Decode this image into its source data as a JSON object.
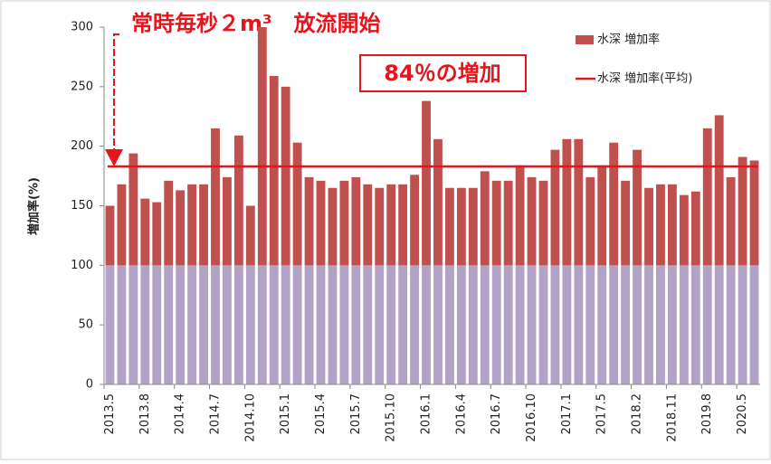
{
  "chart_data": {
    "type": "bar",
    "title": "常時毎秒２m³　放流開始",
    "annotation": "84％の増加",
    "ylabel": "増加率(%)",
    "categories": [
      "2013.5",
      null,
      null,
      "2013.8",
      null,
      null,
      "2014.4",
      null,
      null,
      "2014.7",
      null,
      null,
      "2014.10",
      null,
      null,
      "2015.1",
      null,
      null,
      "2015.4",
      null,
      null,
      "2015.7",
      null,
      null,
      "2015.10",
      null,
      null,
      "2016.1",
      null,
      null,
      "2016.4",
      null,
      null,
      "2016.7",
      null,
      null,
      "2016.10",
      null,
      null,
      "2017.1",
      null,
      null,
      "2017.5",
      null,
      null,
      "2018.2",
      null,
      null,
      "2018.11",
      null,
      null,
      "2019.8",
      null,
      null,
      "2020.5",
      null
    ],
    "series": [
      {
        "name": "水深 増加率",
        "color": "#c0504d",
        "base_color": "#b3a2c7",
        "base_value": 100,
        "values": [
          150,
          168,
          194,
          156,
          153,
          171,
          163,
          168,
          168,
          215,
          174,
          209,
          150,
          300,
          259,
          250,
          203,
          174,
          171,
          165,
          171,
          174,
          168,
          165,
          168,
          168,
          176,
          238,
          206,
          165,
          165,
          165,
          179,
          171,
          171,
          184,
          174,
          171,
          197,
          206,
          206,
          174,
          184,
          203,
          171,
          197,
          165,
          168,
          168,
          159,
          162,
          215,
          226,
          174,
          191,
          188
        ]
      },
      {
        "name": "水深 増加率(平均)",
        "type": "line",
        "color": "#e8141c",
        "value": 183
      }
    ],
    "ylim": [
      0,
      300
    ],
    "yticks": [
      0,
      50,
      100,
      150,
      200,
      250,
      300
    ],
    "grid": false,
    "legend": "top-right"
  }
}
